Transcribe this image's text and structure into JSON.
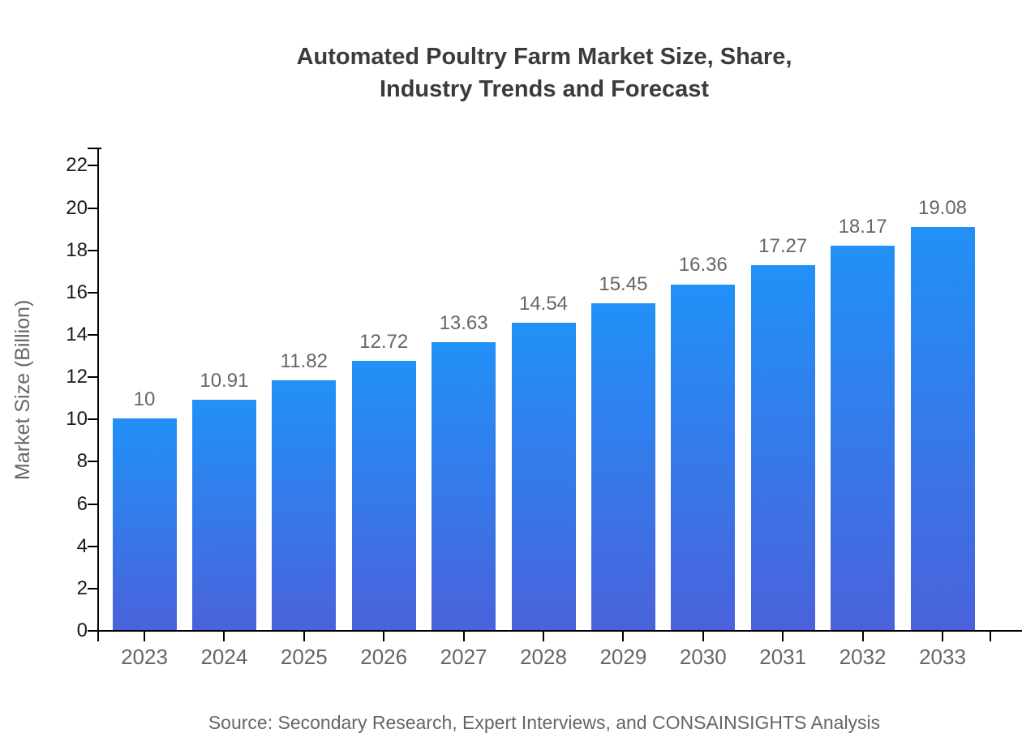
{
  "chart_data": {
    "type": "bar",
    "title_lines": [
      "Automated Poultry Farm Market Size, Share,",
      "Industry Trends and Forecast"
    ],
    "categories": [
      "2023",
      "2024",
      "2025",
      "2026",
      "2027",
      "2028",
      "2029",
      "2030",
      "2031",
      "2032",
      "2033"
    ],
    "values": [
      10,
      10.91,
      11.82,
      12.72,
      13.63,
      14.54,
      15.45,
      16.36,
      17.27,
      18.17,
      19.08
    ],
    "value_labels": [
      "10",
      "10.91",
      "11.82",
      "12.72",
      "13.63",
      "14.54",
      "15.45",
      "16.36",
      "17.27",
      "18.17",
      "19.08"
    ],
    "xlabel": "",
    "ylabel": "Market Size (Billion)",
    "ylim": [
      0,
      22.9
    ],
    "yticks": [
      0,
      2,
      4,
      6,
      8,
      10,
      12,
      14,
      16,
      18,
      20,
      22
    ],
    "grid": false,
    "legend": "none",
    "source": "Source: Secondary Research, Expert Interviews, and CONSAINSIGHTS Analysis",
    "colors": {
      "bar_gradient_top": "#2191f7",
      "bar_gradient_bottom": "#4a62db",
      "title_text": "#3b3b3b",
      "label_text": "#666666",
      "tick_text": "#1a1a1a",
      "axis_line": "#000000",
      "background": "#ffffff"
    }
  }
}
